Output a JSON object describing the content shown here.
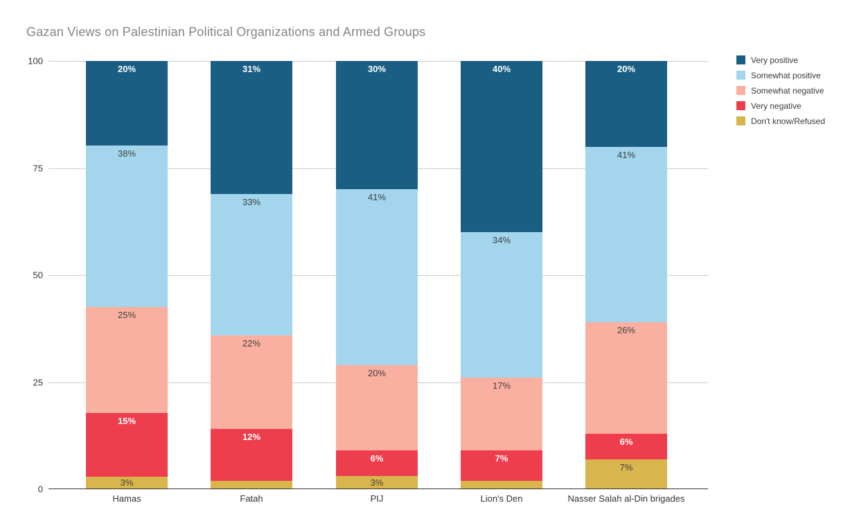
{
  "title": "Gazan Views on Palestinian Political Organizations and Armed Groups",
  "chart_data": {
    "type": "bar",
    "stacked": true,
    "title": "Gazan Views on Palestinian Political Organizations and Armed Groups",
    "xlabel": "",
    "ylabel": "",
    "ylim": [
      0,
      100
    ],
    "yticks": [
      0,
      25,
      50,
      75,
      100
    ],
    "grid": true,
    "legend_position": "right",
    "annotation_min_value": 3,
    "categories": [
      "Hamas",
      "Fatah",
      "PIJ",
      "Lion's Den",
      "Nasser Salah al-Din brigades"
    ],
    "series": [
      {
        "name": "Very positive",
        "color": "#1a5e84",
        "label_style": "light",
        "values": [
          20,
          31,
          30,
          40,
          20
        ]
      },
      {
        "name": "Somewhat positive",
        "color": "#a3d5ed",
        "label_style": "dark",
        "values": [
          38,
          33,
          41,
          34,
          41
        ]
      },
      {
        "name": "Somewhat negative",
        "color": "#fab0a0",
        "label_style": "dark",
        "values": [
          25,
          22,
          20,
          17,
          26
        ]
      },
      {
        "name": "Very negative",
        "color": "#ee3e4d",
        "label_style": "light",
        "values": [
          15,
          12,
          6,
          7,
          6
        ]
      },
      {
        "name": "Don't know/Refused",
        "color": "#d9b54d",
        "label_style": "dark",
        "values": [
          3,
          2,
          3,
          2,
          7
        ]
      }
    ],
    "style": {
      "title_color": "#848484",
      "axis_text_color": "#333333",
      "gridline_color": "#cccccc",
      "baseline_color": "#333333",
      "background": "#ffffff"
    }
  }
}
